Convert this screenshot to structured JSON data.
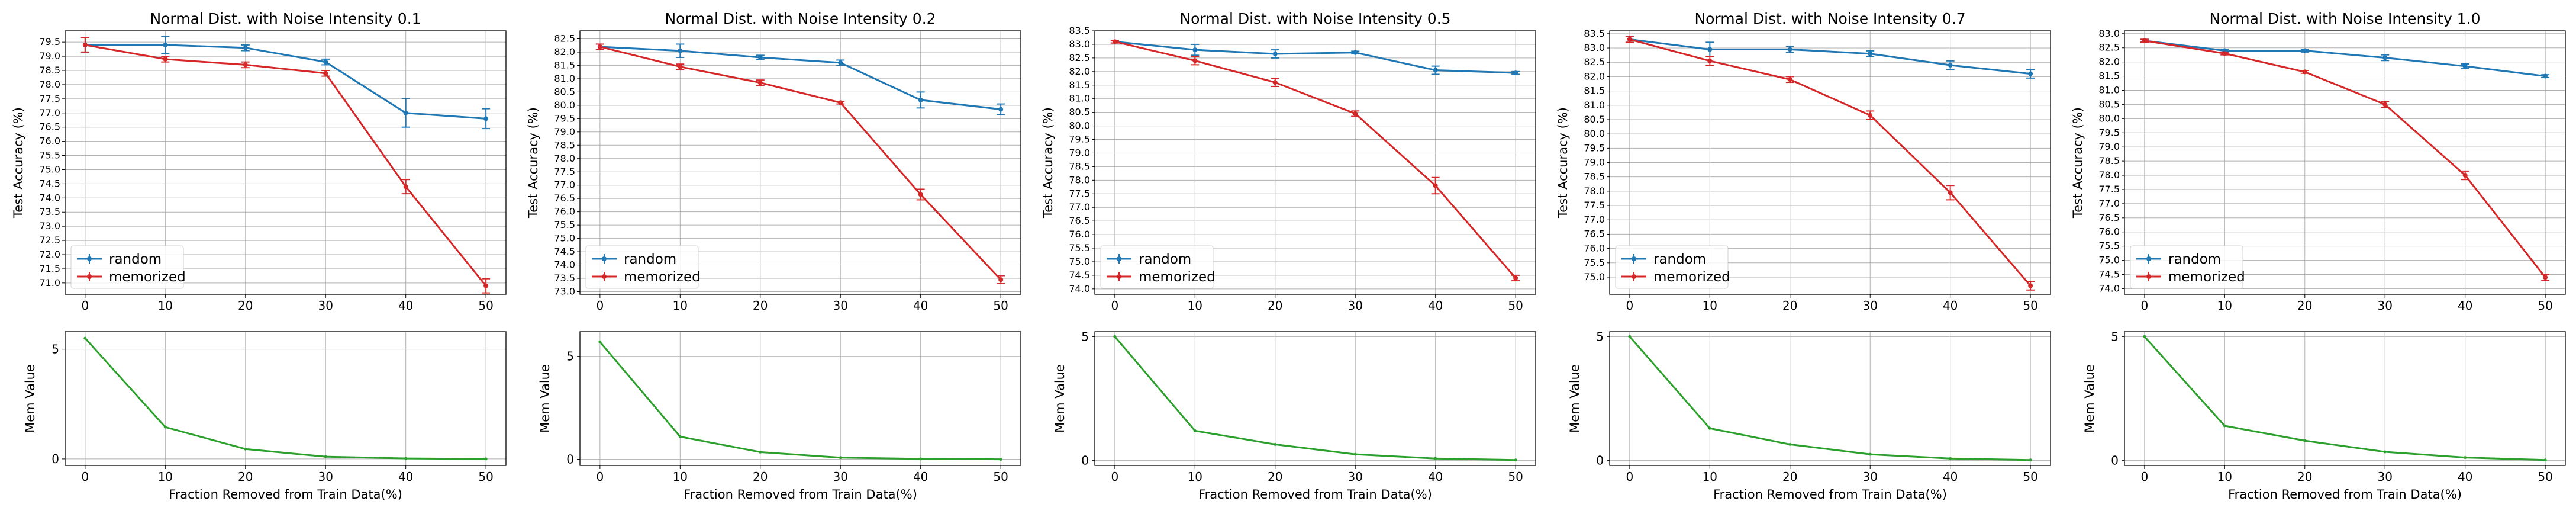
{
  "figure_title": "",
  "colors": {
    "random": "#1f77b4",
    "memorized": "#d62728",
    "mem": "#2ca02c",
    "grid": "#b0b0b0"
  },
  "chart_data": [
    {
      "type": "line",
      "title": "Normal Dist. with Noise Intensity 0.1",
      "x": [
        0,
        10,
        20,
        30,
        40,
        50
      ],
      "xlabel": "Fraction Removed from Train Data(%)",
      "ylabel": "Test Accuracy (%)",
      "ylim": [
        70.6,
        79.9
      ],
      "yticks": [
        "71.0",
        "71.5",
        "72.0",
        "72.5",
        "73.0",
        "73.5",
        "74.0",
        "74.5",
        "75.0",
        "75.5",
        "76.0",
        "76.5",
        "77.0",
        "77.5",
        "78.0",
        "78.5",
        "79.0",
        "79.5"
      ],
      "series": [
        {
          "name": "random",
          "values": [
            79.4,
            79.4,
            79.3,
            78.8,
            77.0,
            76.8
          ],
          "err": [
            0.25,
            0.3,
            0.1,
            0.1,
            0.5,
            0.35
          ]
        },
        {
          "name": "memorized",
          "values": [
            79.4,
            78.9,
            78.7,
            78.4,
            74.4,
            70.9
          ],
          "err": [
            0.25,
            0.1,
            0.1,
            0.1,
            0.25,
            0.25
          ]
        }
      ],
      "legend": "lower-left",
      "mem": {
        "ylabel": "Mem Value",
        "yticks": [
          "0",
          "5"
        ],
        "ylim": [
          -0.3,
          5.8
        ],
        "values": [
          5.5,
          1.45,
          0.45,
          0.1,
          0.02,
          0.0
        ]
      }
    },
    {
      "type": "line",
      "title": "Normal Dist. with Noise Intensity 0.2",
      "x": [
        0,
        10,
        20,
        30,
        40,
        50
      ],
      "xlabel": "Fraction Removed from Train Data(%)",
      "ylabel": "Test Accuracy (%)",
      "ylim": [
        72.9,
        82.8
      ],
      "yticks": [
        "73.0",
        "73.5",
        "74.0",
        "74.5",
        "75.0",
        "75.5",
        "76.0",
        "76.5",
        "77.0",
        "77.5",
        "78.0",
        "78.5",
        "79.0",
        "79.5",
        "80.0",
        "80.5",
        "81.0",
        "81.5",
        "82.0",
        "82.5"
      ],
      "series": [
        {
          "name": "random",
          "values": [
            82.2,
            82.05,
            81.8,
            81.6,
            80.2,
            79.85
          ],
          "err": [
            0.1,
            0.25,
            0.08,
            0.1,
            0.3,
            0.2
          ]
        },
        {
          "name": "memorized",
          "values": [
            82.2,
            81.45,
            80.85,
            80.1,
            76.65,
            73.45
          ],
          "err": [
            0.1,
            0.1,
            0.1,
            0.05,
            0.2,
            0.15
          ]
        }
      ],
      "legend": "lower-left",
      "mem": {
        "ylabel": "Mem Value",
        "yticks": [
          "0",
          "5"
        ],
        "ylim": [
          -0.3,
          6.2
        ],
        "values": [
          5.7,
          1.1,
          0.35,
          0.08,
          0.02,
          0.0
        ]
      }
    },
    {
      "type": "line",
      "title": "Normal Dist. with Noise Intensity 0.5",
      "x": [
        0,
        10,
        20,
        30,
        40,
        50
      ],
      "xlabel": "Fraction Removed from Train Data(%)",
      "ylabel": "Test Accuracy (%)",
      "ylim": [
        73.8,
        83.5
      ],
      "yticks": [
        "74.0",
        "74.5",
        "75.0",
        "75.5",
        "76.0",
        "76.5",
        "77.0",
        "77.5",
        "78.0",
        "78.5",
        "79.0",
        "79.5",
        "80.0",
        "80.5",
        "81.0",
        "81.5",
        "82.0",
        "82.5",
        "83.0",
        "83.5"
      ],
      "series": [
        {
          "name": "random",
          "values": [
            83.1,
            82.8,
            82.65,
            82.7,
            82.05,
            81.95
          ],
          "err": [
            0.05,
            0.2,
            0.15,
            0.05,
            0.15,
            0.05
          ]
        },
        {
          "name": "memorized",
          "values": [
            83.1,
            82.4,
            81.6,
            80.45,
            77.8,
            74.4
          ],
          "err": [
            0.05,
            0.15,
            0.15,
            0.1,
            0.3,
            0.1
          ]
        }
      ],
      "legend": "lower-left",
      "mem": {
        "ylabel": "Mem Value",
        "yticks": [
          "0",
          "5"
        ],
        "ylim": [
          -0.2,
          5.2
        ],
        "values": [
          5.0,
          1.2,
          0.65,
          0.25,
          0.08,
          0.02
        ]
      }
    },
    {
      "type": "line",
      "title": "Normal Dist. with Noise Intensity 0.7",
      "x": [
        0,
        10,
        20,
        30,
        40,
        50
      ],
      "xlabel": "Fraction Removed from Train Data(%)",
      "ylabel": "Test Accuracy (%)",
      "ylim": [
        74.4,
        83.6
      ],
      "yticks": [
        "75.0",
        "75.5",
        "76.0",
        "76.5",
        "77.0",
        "77.5",
        "78.0",
        "78.5",
        "79.0",
        "79.5",
        "80.0",
        "80.5",
        "81.0",
        "81.5",
        "82.0",
        "82.5",
        "83.0",
        "83.5"
      ],
      "series": [
        {
          "name": "random",
          "values": [
            83.3,
            82.95,
            82.95,
            82.8,
            82.4,
            82.1
          ],
          "err": [
            0.1,
            0.25,
            0.1,
            0.1,
            0.15,
            0.15
          ]
        },
        {
          "name": "memorized",
          "values": [
            83.3,
            82.55,
            81.9,
            80.65,
            77.95,
            74.7
          ],
          "err": [
            0.1,
            0.15,
            0.1,
            0.15,
            0.25,
            0.15
          ]
        }
      ],
      "legend": "lower-left",
      "mem": {
        "ylabel": "Mem Value",
        "yticks": [
          "0",
          "5"
        ],
        "ylim": [
          -0.2,
          5.2
        ],
        "values": [
          5.0,
          1.3,
          0.65,
          0.25,
          0.08,
          0.02
        ]
      }
    },
    {
      "type": "line",
      "title": "Normal Dist. with Noise Intensity 1.0",
      "x": [
        0,
        10,
        20,
        30,
        40,
        50
      ],
      "xlabel": "Fraction Removed from Train Data(%)",
      "ylabel": "Test Accuracy (%)",
      "ylim": [
        73.8,
        83.1
      ],
      "yticks": [
        "74.0",
        "74.5",
        "75.0",
        "75.5",
        "76.0",
        "76.5",
        "77.0",
        "77.5",
        "78.0",
        "78.5",
        "79.0",
        "79.5",
        "80.0",
        "80.5",
        "81.0",
        "81.5",
        "82.0",
        "82.5",
        "83.0"
      ],
      "series": [
        {
          "name": "random",
          "values": [
            82.75,
            82.4,
            82.4,
            82.15,
            81.85,
            81.5
          ],
          "err": [
            0.05,
            0.05,
            0.05,
            0.1,
            0.08,
            0.05
          ]
        },
        {
          "name": "memorized",
          "values": [
            82.75,
            82.3,
            81.65,
            80.5,
            78.0,
            74.4
          ],
          "err": [
            0.05,
            0.05,
            0.05,
            0.1,
            0.15,
            0.1
          ]
        }
      ],
      "legend": "lower-left",
      "mem": {
        "ylabel": "Mem Value",
        "yticks": [
          "0",
          "5"
        ],
        "ylim": [
          -0.2,
          5.2
        ],
        "values": [
          5.0,
          1.4,
          0.8,
          0.35,
          0.12,
          0.02
        ]
      }
    }
  ]
}
